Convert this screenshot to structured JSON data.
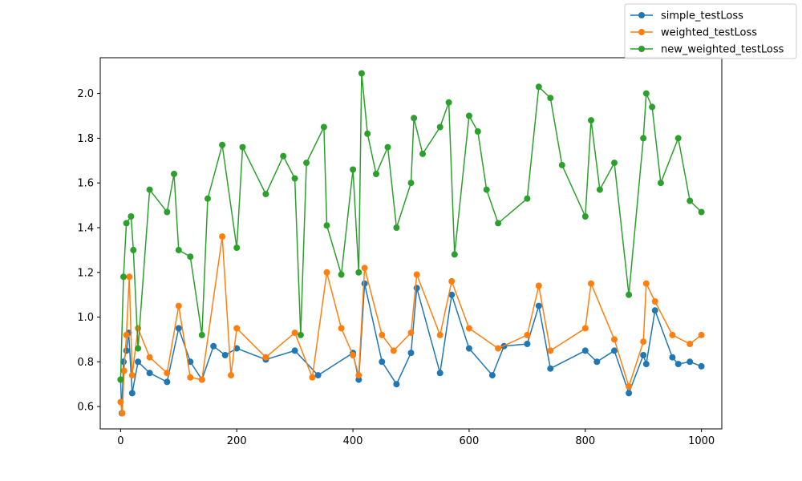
{
  "chart_data": {
    "type": "line",
    "title": "",
    "xlabel": "",
    "ylabel": "",
    "xlim": [
      -35,
      1035
    ],
    "ylim": [
      0.5,
      2.16
    ],
    "xticks": [
      0,
      200,
      400,
      600,
      800,
      1000
    ],
    "yticks": [
      0.6,
      0.8,
      1.0,
      1.2,
      1.4,
      1.6,
      1.8,
      2.0
    ],
    "grid": false,
    "legend_position": "top-right",
    "markers": "circle",
    "series": [
      {
        "name": "simple_testLoss",
        "color": "#1f77b4",
        "x": [
          0,
          2,
          5,
          10,
          14,
          20,
          30,
          50,
          80,
          100,
          120,
          140,
          160,
          180,
          200,
          250,
          300,
          340,
          400,
          410,
          420,
          450,
          475,
          500,
          510,
          550,
          570,
          600,
          640,
          660,
          700,
          720,
          740,
          800,
          820,
          850,
          875,
          900,
          905,
          920,
          950,
          960,
          980,
          1000
        ],
        "values": [
          0.72,
          0.57,
          0.8,
          0.85,
          0.93,
          0.66,
          0.8,
          0.75,
          0.71,
          0.95,
          0.8,
          0.72,
          0.87,
          0.83,
          0.86,
          0.81,
          0.85,
          0.74,
          0.84,
          0.72,
          1.15,
          0.8,
          0.7,
          0.84,
          1.13,
          0.75,
          1.1,
          0.86,
          0.74,
          0.87,
          0.88,
          1.05,
          0.77,
          0.85,
          0.8,
          0.85,
          0.66,
          0.83,
          0.79,
          1.03,
          0.82,
          0.79,
          0.8,
          0.78
        ]
      },
      {
        "name": "weighted_testLoss",
        "color": "#ff7f0e",
        "x": [
          0,
          3,
          6,
          10,
          15,
          20,
          30,
          50,
          80,
          100,
          120,
          140,
          175,
          190,
          200,
          250,
          300,
          330,
          355,
          380,
          400,
          410,
          420,
          450,
          470,
          500,
          510,
          550,
          570,
          600,
          650,
          700,
          720,
          740,
          800,
          810,
          850,
          875,
          900,
          905,
          920,
          950,
          980,
          1000
        ],
        "values": [
          0.62,
          0.57,
          0.76,
          0.92,
          1.18,
          0.74,
          0.95,
          0.82,
          0.75,
          1.05,
          0.73,
          0.72,
          1.36,
          0.74,
          0.95,
          0.82,
          0.93,
          0.73,
          1.2,
          0.95,
          0.83,
          0.74,
          1.22,
          0.92,
          0.85,
          0.93,
          1.19,
          0.92,
          1.16,
          0.95,
          0.86,
          0.92,
          1.14,
          0.85,
          0.95,
          1.15,
          0.9,
          0.69,
          0.89,
          1.15,
          1.07,
          0.92,
          0.88,
          0.92
        ]
      },
      {
        "name": "new_weighted_testLoss",
        "color": "#2ca02c",
        "x": [
          0,
          5,
          10,
          18,
          22,
          30,
          50,
          80,
          92,
          100,
          120,
          140,
          150,
          175,
          200,
          210,
          250,
          280,
          300,
          310,
          320,
          350,
          355,
          380,
          400,
          410,
          415,
          425,
          440,
          460,
          475,
          500,
          505,
          520,
          550,
          565,
          575,
          600,
          615,
          630,
          650,
          700,
          720,
          740,
          760,
          800,
          810,
          825,
          850,
          875,
          900,
          905,
          915,
          930,
          960,
          980,
          1000
        ],
        "values": [
          0.72,
          1.18,
          1.42,
          1.45,
          1.3,
          0.86,
          1.57,
          1.47,
          1.64,
          1.3,
          1.27,
          0.92,
          1.53,
          1.77,
          1.31,
          1.76,
          1.55,
          1.72,
          1.62,
          0.92,
          1.69,
          1.85,
          1.41,
          1.19,
          1.66,
          1.2,
          2.09,
          1.82,
          1.64,
          1.76,
          1.4,
          1.6,
          1.89,
          1.73,
          1.85,
          1.96,
          1.28,
          1.9,
          1.83,
          1.57,
          1.42,
          1.53,
          2.03,
          1.98,
          1.68,
          1.45,
          1.88,
          1.57,
          1.69,
          1.1,
          1.8,
          2.0,
          1.94,
          1.6,
          1.8,
          1.52,
          1.47
        ]
      }
    ]
  }
}
